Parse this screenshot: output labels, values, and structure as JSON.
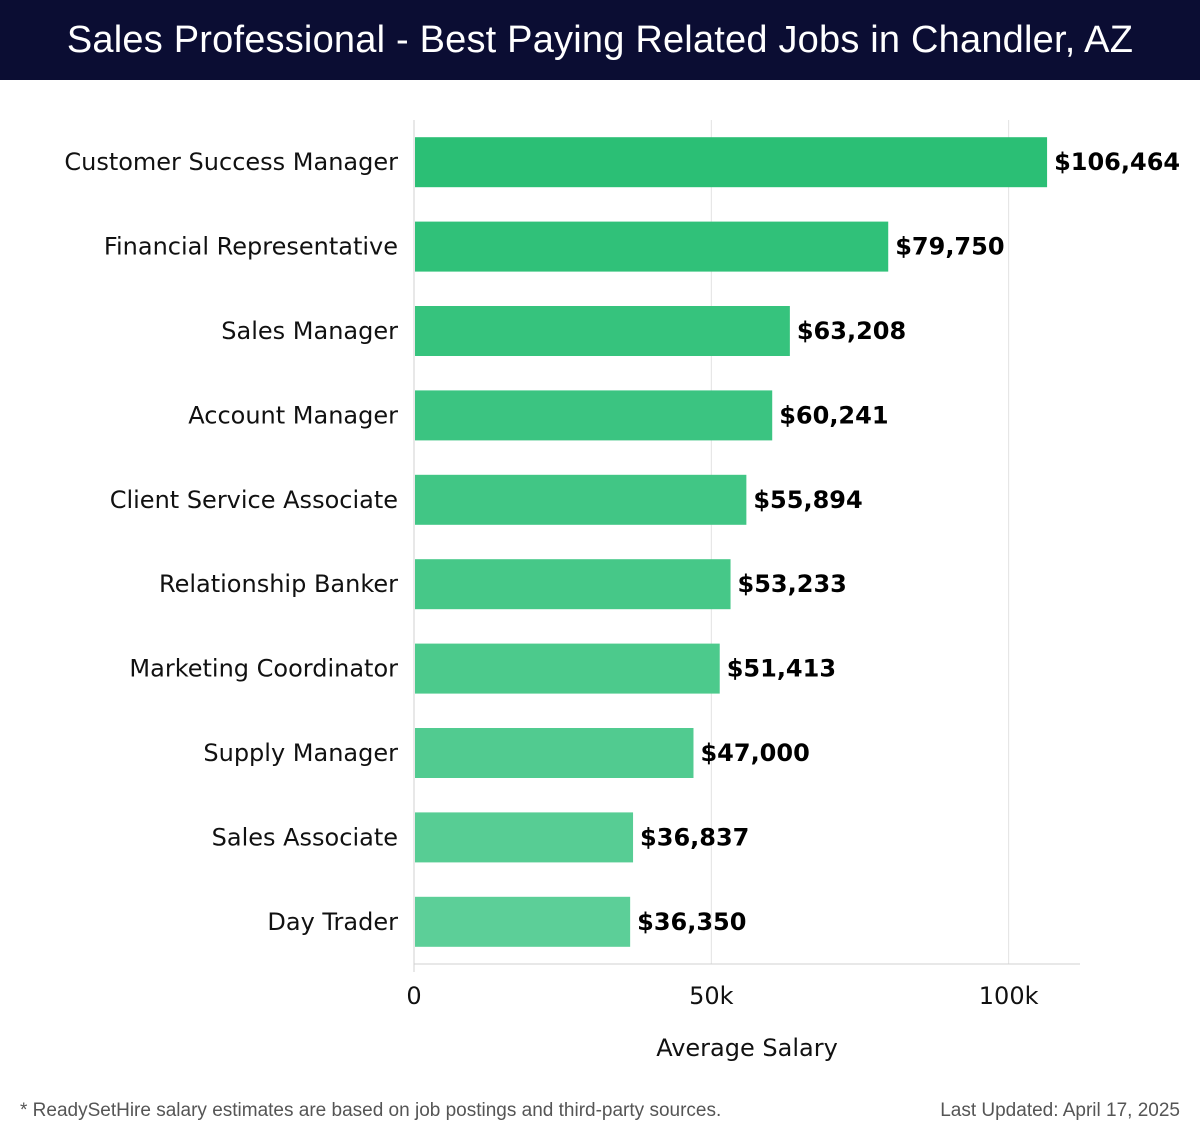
{
  "header": {
    "title": "Sales Professional - Best Paying Related Jobs in Chandler, AZ"
  },
  "chart_data": {
    "type": "bar",
    "orientation": "horizontal",
    "categories": [
      "Customer Success Manager",
      "Financial Representative",
      "Sales Manager",
      "Account Manager",
      "Client Service Associate",
      "Relationship Banker",
      "Marketing Coordinator",
      "Supply Manager",
      "Sales Associate",
      "Day Trader"
    ],
    "values": [
      106464,
      79750,
      63208,
      60241,
      55894,
      53233,
      51413,
      47000,
      36837,
      36350
    ],
    "value_labels": [
      "$106,464",
      "$79,750",
      "$63,208",
      "$60,241",
      "$55,894",
      "$53,233",
      "$51,413",
      "$47,000",
      "$36,837",
      "$36,350"
    ],
    "xlabel": "Average Salary",
    "ylabel": "",
    "xlim": [
      0,
      112000
    ],
    "x_ticks": [
      0,
      50000,
      100000
    ],
    "x_tick_labels": [
      "0",
      "50k",
      "100k"
    ],
    "grid": "vertical",
    "colors": {
      "bar_top": "#2bbf75",
      "bar_bottom": "#5ccf98"
    }
  },
  "footer": {
    "note": "* ReadySetHire salary estimates are based on job postings and third-party sources.",
    "updated": "Last Updated: April 17, 2025"
  }
}
